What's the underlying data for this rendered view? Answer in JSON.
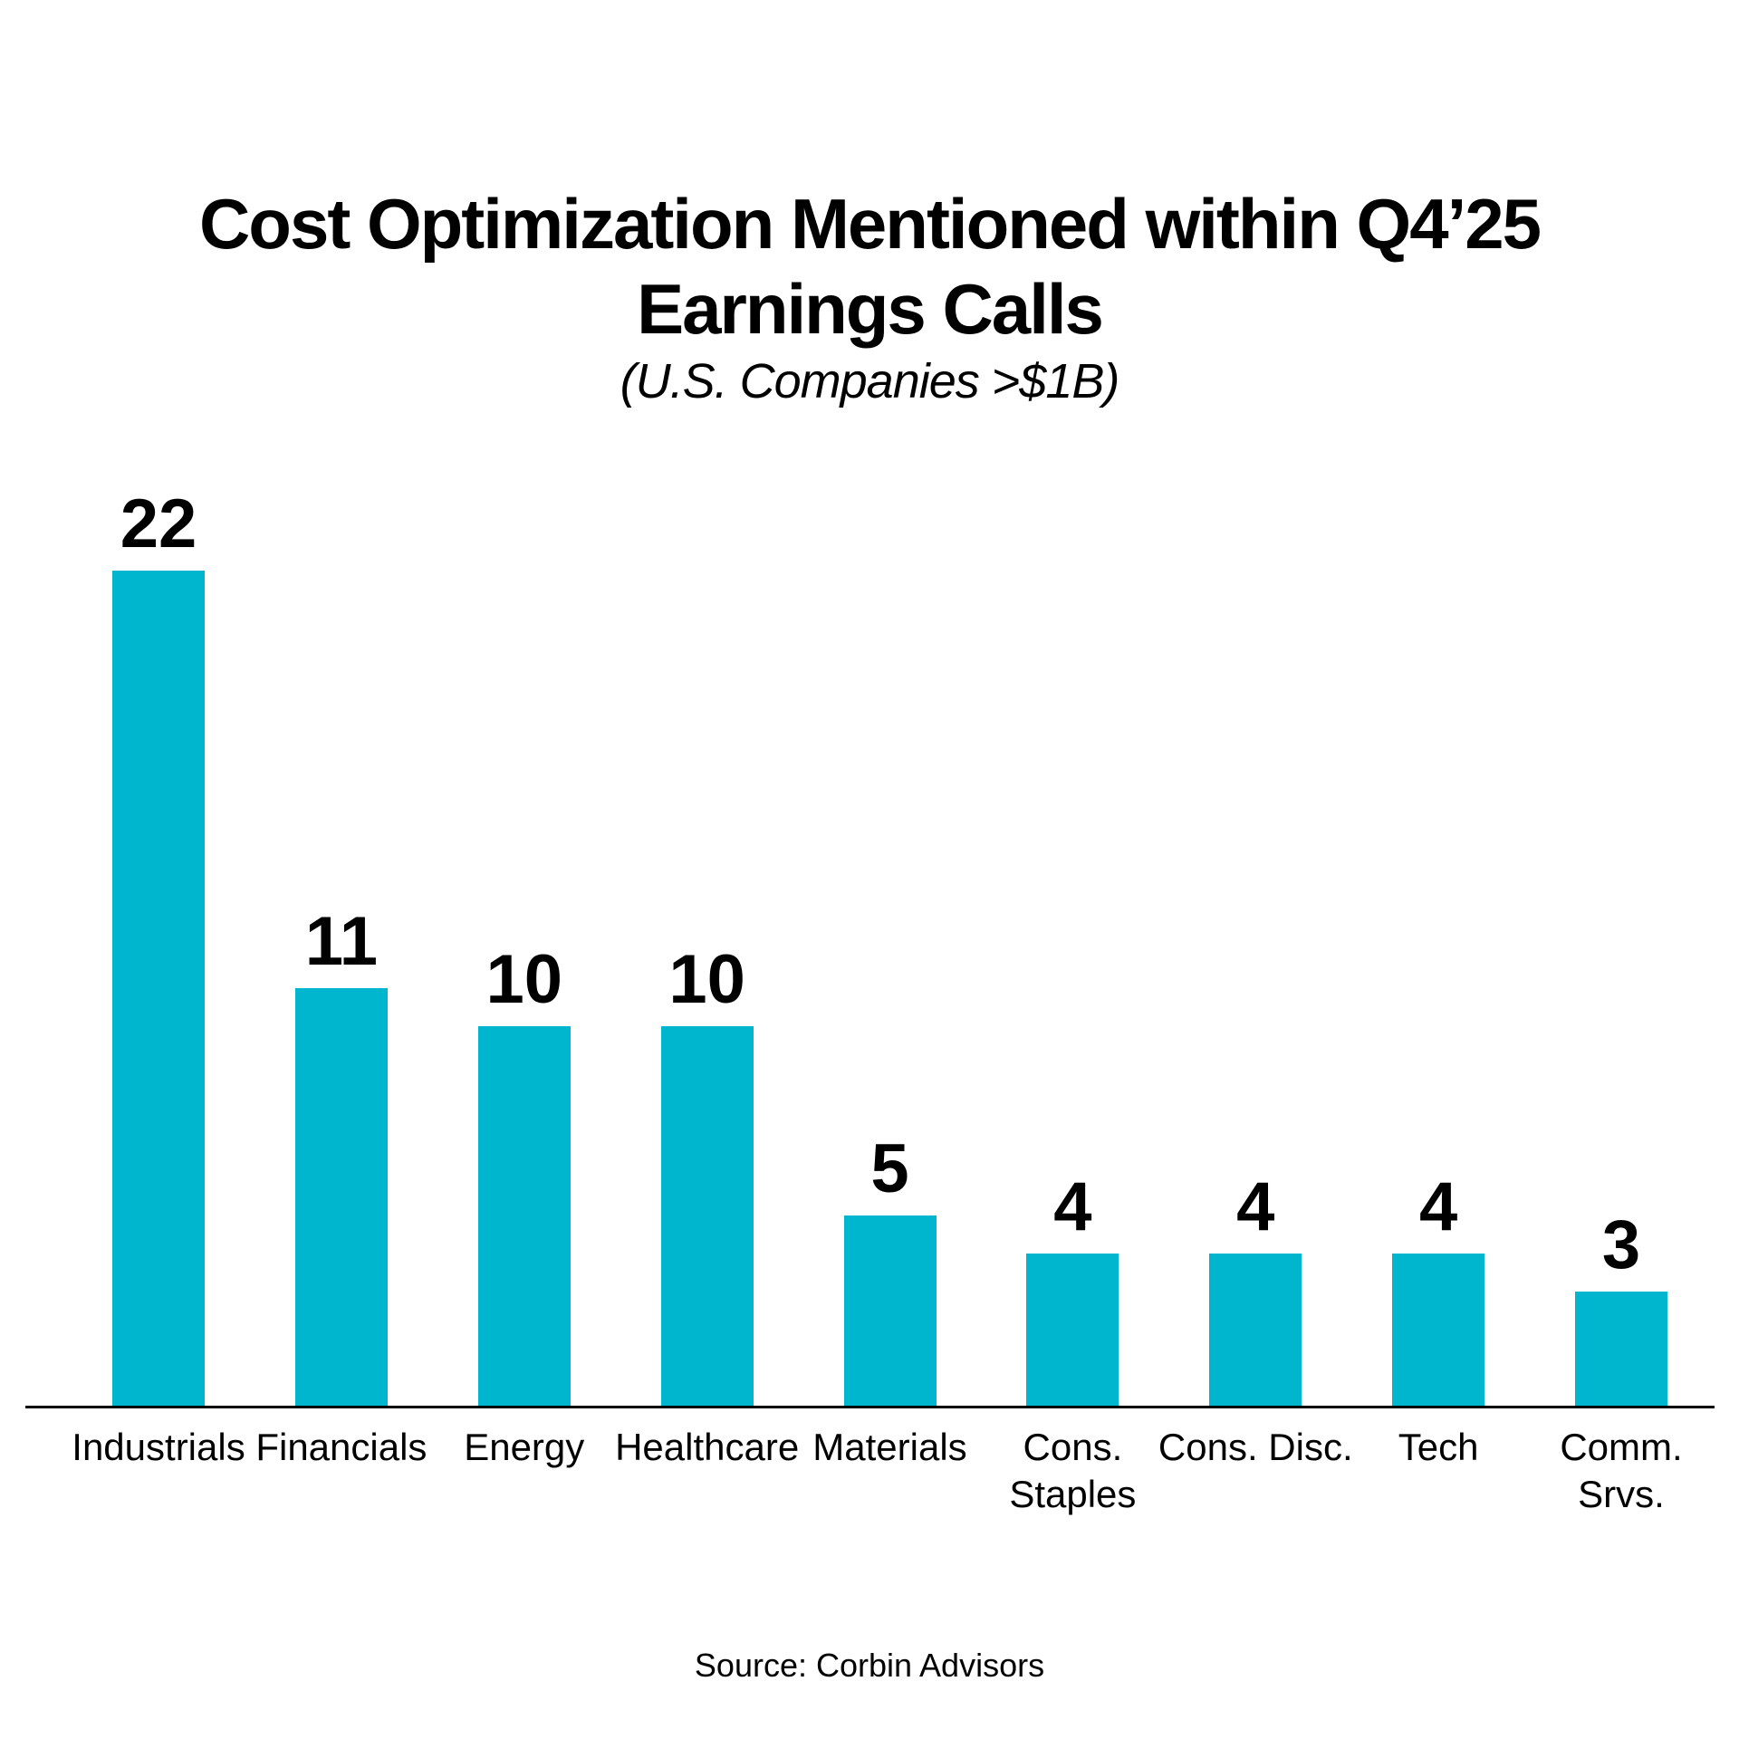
{
  "chart_data": {
    "type": "bar",
    "title": "Cost Optimization Mentioned within Q4’25 Earnings Calls",
    "title_lines": [
      "Cost Optimization Mentioned within Q4’25",
      "Earnings Calls"
    ],
    "subtitle": "(U.S. Companies >$1B)",
    "categories": [
      "Industrials",
      "Financials",
      "Energy",
      "Healthcare",
      "Materials",
      "Cons. Staples",
      "Cons. Disc.",
      "Tech",
      "Comm. Srvs."
    ],
    "category_lines": [
      [
        "Industrials"
      ],
      [
        "Financials"
      ],
      [
        "Energy"
      ],
      [
        "Healthcare"
      ],
      [
        "Materials"
      ],
      [
        "Cons.",
        "Staples"
      ],
      [
        "Cons. Disc."
      ],
      [
        "Tech"
      ],
      [
        "Comm.",
        "Srvs."
      ]
    ],
    "values": [
      22,
      11,
      10,
      10,
      5,
      4,
      4,
      4,
      3
    ],
    "value_labels_shown": true,
    "bar_color": "#00b5ce",
    "text_color": "#000000",
    "axis_line_color": "#000000",
    "ylim": [
      0,
      22
    ],
    "grid": false,
    "legend": "none",
    "source": "Source: Corbin Advisors"
  }
}
